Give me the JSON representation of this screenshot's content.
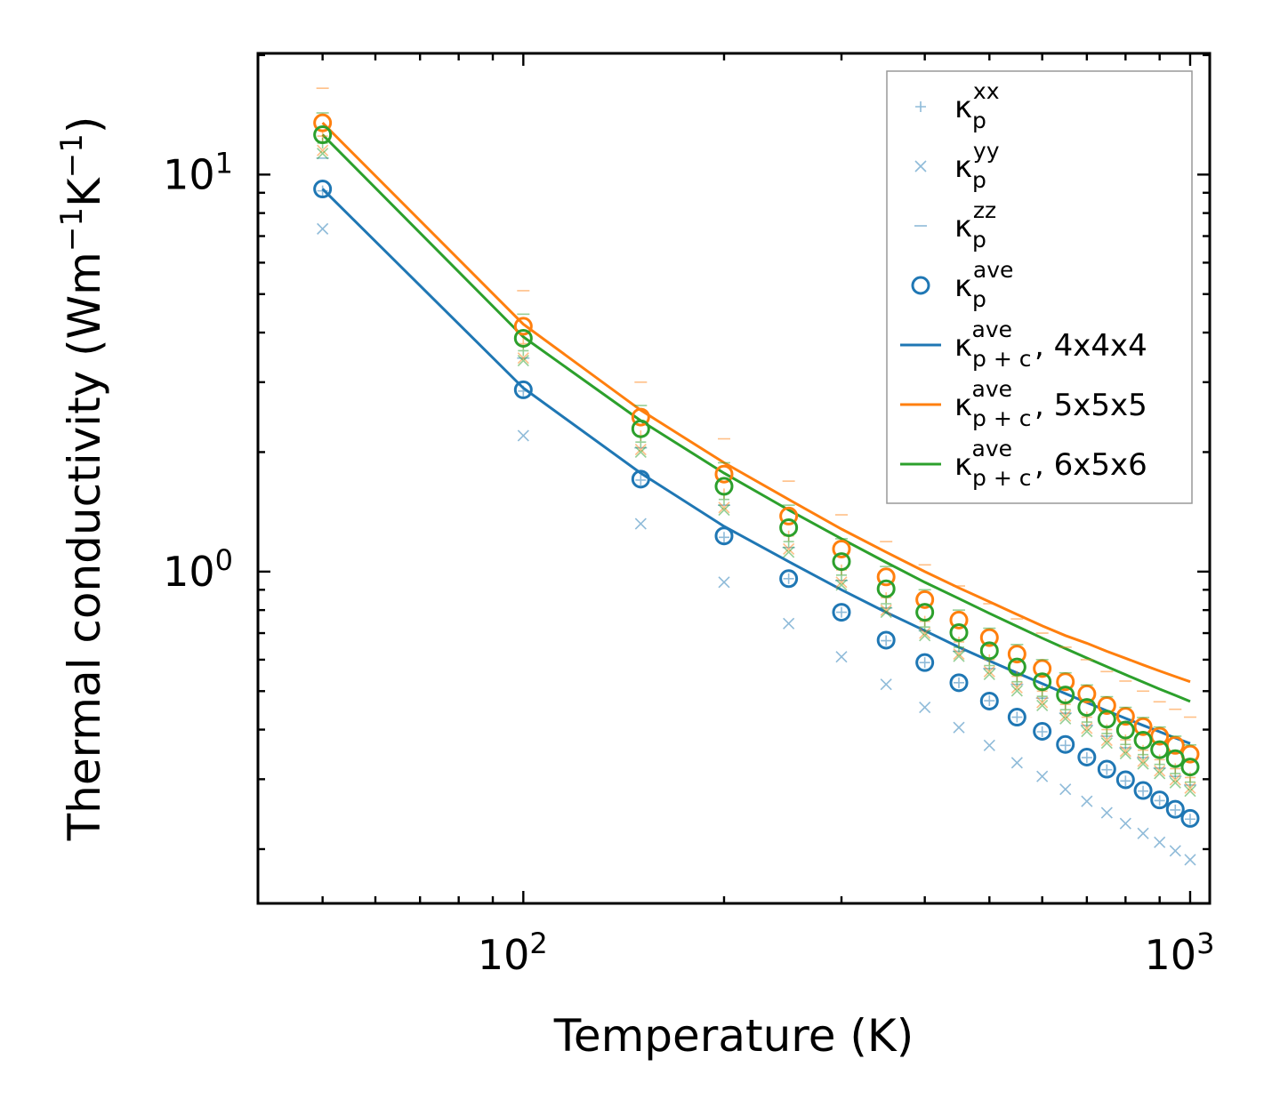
{
  "chart_data": {
    "type": "scatter",
    "xscale": "log",
    "yscale": "log",
    "xlabel": "Temperature (K)",
    "ylabel_base": "Thermal conductivity (Wm",
    "ylabel_exp1": "−1",
    "ylabel_mid": "K",
    "ylabel_exp2": "−1",
    "ylabel_end": ")",
    "xlim": [
      40,
      1070
    ],
    "ylim": [
      0.146,
      20.2
    ],
    "xticks": [
      {
        "base": "10",
        "exp": "2",
        "value": 100
      },
      {
        "base": "10",
        "exp": "3",
        "value": 1000
      }
    ],
    "yticks": [
      {
        "base": "10",
        "exp": "0",
        "value": 1
      },
      {
        "base": "10",
        "exp": "1",
        "value": 10
      }
    ],
    "legend_position": "top-right",
    "x": [
      50,
      100,
      150,
      200,
      250,
      300,
      350,
      400,
      450,
      500,
      550,
      600,
      650,
      700,
      750,
      800,
      850,
      900,
      950,
      1000
    ],
    "series": [
      {
        "name": "κp,xx 4x4x4",
        "kind": "marker",
        "marker": "plus",
        "color": "#1f77b4",
        "values": [
          9.1,
          2.85,
          1.7,
          1.22,
          0.96,
          0.79,
          0.67,
          0.59,
          0.525,
          0.473,
          0.43,
          0.395,
          0.365,
          0.34,
          0.317,
          0.297,
          0.28,
          0.265,
          0.251,
          0.238
        ]
      },
      {
        "name": "κp,yy 4x4x4",
        "kind": "marker",
        "marker": "cross",
        "color": "#1f77b4",
        "values": [
          7.3,
          2.2,
          1.32,
          0.94,
          0.74,
          0.61,
          0.52,
          0.455,
          0.405,
          0.365,
          0.33,
          0.305,
          0.283,
          0.264,
          0.247,
          0.232,
          0.219,
          0.208,
          0.198,
          0.188
        ]
      },
      {
        "name": "κp,zz 4x4x4",
        "kind": "marker",
        "marker": "dash",
        "color": "#1f77b4",
        "values": [
          11.0,
          3.45,
          2.05,
          1.47,
          1.15,
          0.95,
          0.81,
          0.71,
          0.63,
          0.57,
          0.52,
          0.48,
          0.44,
          0.41,
          0.385,
          0.36,
          0.34,
          0.32,
          0.305,
          0.29
        ]
      },
      {
        "name": "κp,ave 4x4x4",
        "kind": "marker",
        "marker": "circle",
        "color": "#1f77b4",
        "values": [
          9.2,
          2.87,
          1.71,
          1.23,
          0.96,
          0.79,
          0.672,
          0.59,
          0.525,
          0.472,
          0.43,
          0.396,
          0.367,
          0.341,
          0.318,
          0.299,
          0.281,
          0.266,
          0.252,
          0.239
        ]
      },
      {
        "name": "κp,xx 5x5x5",
        "kind": "marker",
        "marker": "plus",
        "color": "#ff7f0e",
        "values": [
          12.5,
          3.75,
          2.2,
          1.57,
          1.23,
          1.01,
          0.86,
          0.75,
          0.665,
          0.6,
          0.545,
          0.5,
          0.463,
          0.43,
          0.4,
          0.377,
          0.355,
          0.336,
          0.319,
          0.303
        ]
      },
      {
        "name": "κp,yy 5x5x5",
        "kind": "marker",
        "marker": "cross",
        "color": "#ff7f0e",
        "values": [
          11.5,
          3.45,
          2.03,
          1.45,
          1.14,
          0.94,
          0.8,
          0.7,
          0.62,
          0.56,
          0.51,
          0.468,
          0.433,
          0.403,
          0.376,
          0.353,
          0.333,
          0.315,
          0.299,
          0.285
        ]
      },
      {
        "name": "κp,zz 5x5x5",
        "kind": "marker",
        "marker": "dash",
        "color": "#ff7f0e",
        "values": [
          16.5,
          5.1,
          3.0,
          2.16,
          1.69,
          1.39,
          1.19,
          1.04,
          0.92,
          0.83,
          0.76,
          0.7,
          0.645,
          0.6,
          0.56,
          0.53,
          0.5,
          0.47,
          0.45,
          0.43
        ]
      },
      {
        "name": "κp,ave 5x5x5",
        "kind": "marker",
        "marker": "circle",
        "color": "#ff7f0e",
        "values": [
          13.5,
          4.15,
          2.45,
          1.76,
          1.38,
          1.14,
          0.97,
          0.85,
          0.755,
          0.682,
          0.62,
          0.57,
          0.528,
          0.492,
          0.46,
          0.432,
          0.407,
          0.385,
          0.365,
          0.347
        ]
      },
      {
        "name": "κp,xx 6x5x6",
        "kind": "marker",
        "marker": "plus",
        "color": "#2ca02c",
        "values": [
          12.0,
          3.6,
          2.12,
          1.52,
          1.19,
          0.98,
          0.83,
          0.725,
          0.645,
          0.58,
          0.528,
          0.485,
          0.449,
          0.418,
          0.391,
          0.367,
          0.346,
          0.327,
          0.31,
          0.295
        ]
      },
      {
        "name": "κp,yy 6x5x6",
        "kind": "marker",
        "marker": "cross",
        "color": "#2ca02c",
        "values": [
          11.3,
          3.4,
          2.0,
          1.43,
          1.12,
          0.925,
          0.79,
          0.69,
          0.612,
          0.551,
          0.501,
          0.46,
          0.426,
          0.396,
          0.37,
          0.348,
          0.328,
          0.31,
          0.294,
          0.28
        ]
      },
      {
        "name": "κp,zz 6x5x6",
        "kind": "marker",
        "marker": "dash",
        "color": "#2ca02c",
        "values": [
          14.3,
          4.45,
          2.62,
          1.88,
          1.47,
          1.21,
          1.03,
          0.9,
          0.8,
          0.72,
          0.655,
          0.6,
          0.556,
          0.518,
          0.484,
          0.455,
          0.429,
          0.406,
          0.385,
          0.366
        ]
      },
      {
        "name": "κp,ave 6x5x6",
        "kind": "marker",
        "marker": "circle",
        "color": "#2ca02c",
        "values": [
          12.6,
          3.87,
          2.29,
          1.64,
          1.29,
          1.06,
          0.905,
          0.79,
          0.702,
          0.632,
          0.575,
          0.528,
          0.489,
          0.455,
          0.425,
          0.399,
          0.376,
          0.356,
          0.338,
          0.322
        ]
      },
      {
        "name": "κp+c,ave 4x4x4",
        "kind": "line",
        "color": "#1f77b4",
        "values": [
          9.2,
          2.9,
          1.77,
          1.3,
          1.06,
          0.9,
          0.79,
          0.71,
          0.645,
          0.596,
          0.556,
          0.522,
          0.493,
          0.468,
          0.446,
          0.427,
          0.41,
          0.395,
          0.381,
          0.369
        ]
      },
      {
        "name": "κp+c,ave 5x5x5",
        "kind": "line",
        "color": "#ff7f0e",
        "values": [
          13.5,
          4.2,
          2.55,
          1.88,
          1.52,
          1.28,
          1.12,
          1.0,
          0.91,
          0.84,
          0.78,
          0.73,
          0.69,
          0.66,
          0.63,
          0.605,
          0.582,
          0.562,
          0.544,
          0.528
        ]
      },
      {
        "name": "κp+c,ave 6x5x6",
        "kind": "line",
        "color": "#2ca02c",
        "values": [
          12.6,
          3.9,
          2.4,
          1.77,
          1.43,
          1.21,
          1.055,
          0.94,
          0.855,
          0.785,
          0.728,
          0.68,
          0.64,
          0.606,
          0.576,
          0.55,
          0.527,
          0.506,
          0.488,
          0.471
        ]
      }
    ],
    "legend": [
      {
        "kind": "plus",
        "color": "#1f77b4",
        "base": "κ",
        "sup": "xx",
        "sub": "p",
        "suffix": ""
      },
      {
        "kind": "cross",
        "color": "#1f77b4",
        "base": "κ",
        "sup": "yy",
        "sub": "p",
        "suffix": ""
      },
      {
        "kind": "dash",
        "color": "#1f77b4",
        "base": "κ",
        "sup": "zz",
        "sub": "p",
        "suffix": ""
      },
      {
        "kind": "circle",
        "color": "#1f77b4",
        "base": "κ",
        "sup": "ave",
        "sub": "p",
        "suffix": ""
      },
      {
        "kind": "line",
        "color": "#1f77b4",
        "base": "κ",
        "sup": "ave",
        "sub": "p + c",
        "suffix": ", 4x4x4"
      },
      {
        "kind": "line",
        "color": "#ff7f0e",
        "base": "κ",
        "sup": "ave",
        "sub": "p + c",
        "suffix": ", 5x5x5"
      },
      {
        "kind": "line",
        "color": "#2ca02c",
        "base": "κ",
        "sup": "ave",
        "sub": "p + c",
        "suffix": ", 6x5x6"
      }
    ]
  }
}
